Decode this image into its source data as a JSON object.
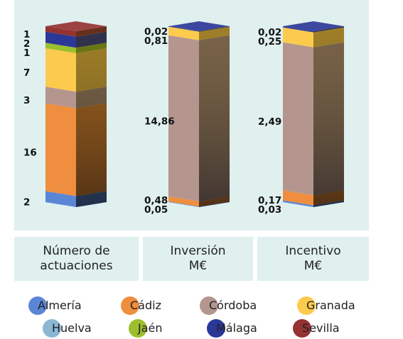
{
  "chart_data": {
    "type": "bar",
    "stacked": true,
    "categories": [
      "Número de\nactuaciones",
      "Inversión\nM€",
      "Incentivo\nM€"
    ],
    "series": [
      {
        "name": "Almería",
        "color": "#5b86d6",
        "values": [
          2,
          0.05,
          0.03
        ]
      },
      {
        "name": "Cádiz",
        "color": "#ee8e3e",
        "values": [
          16,
          0.48,
          0.17
        ]
      },
      {
        "name": "Córdoba",
        "color": "#b4968f",
        "values": [
          3,
          14.86,
          2.49
        ]
      },
      {
        "name": "Granada",
        "color": "#fccb4e",
        "values": [
          7,
          0.81,
          0.25
        ]
      },
      {
        "name": "Huelva",
        "color": "#8ab8d3",
        "values": [
          0,
          0,
          0
        ]
      },
      {
        "name": "Jaén",
        "color": "#9bbf2d",
        "values": [
          1,
          0,
          0
        ]
      },
      {
        "name": "Málaga",
        "color": "#2b3897",
        "values": [
          2,
          0.02,
          0.02
        ]
      },
      {
        "name": "Sevilla",
        "color": "#953232",
        "values": [
          1,
          0,
          0
        ]
      }
    ],
    "labels": [
      [
        "2",
        "16",
        "3",
        "7",
        "",
        "1",
        "2",
        "1"
      ],
      [
        "0,05",
        "0,48",
        "14,86",
        "0,81",
        "",
        "",
        "0,02",
        ""
      ],
      [
        "0,03",
        "0,17",
        "2,49",
        "0,25",
        "",
        "",
        "0,02",
        ""
      ]
    ],
    "legend_position": "bottom"
  }
}
